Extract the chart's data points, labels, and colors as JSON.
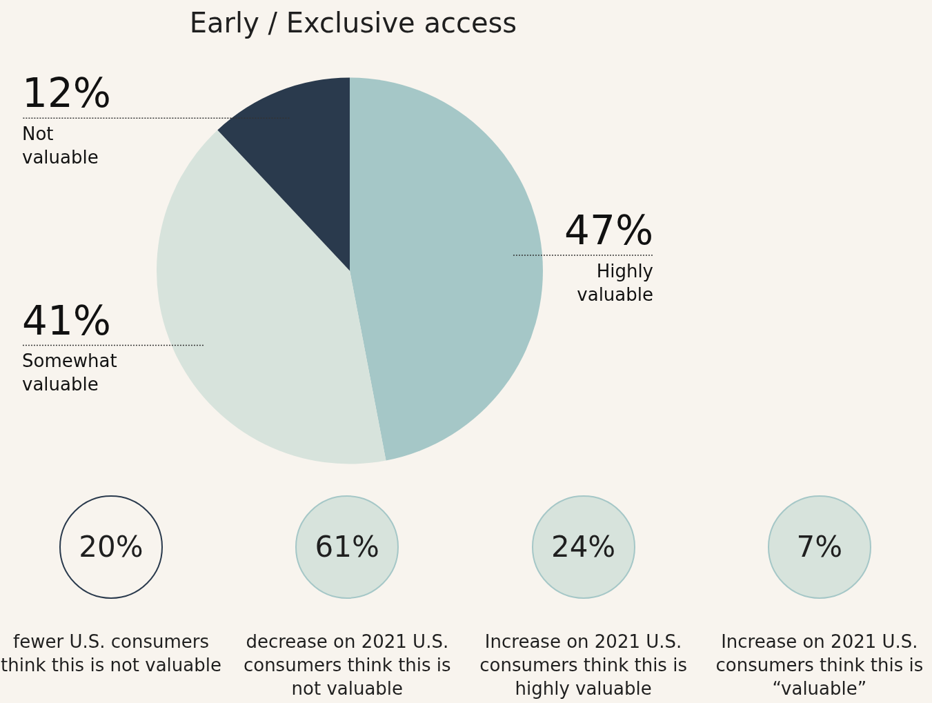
{
  "chart_data": {
    "type": "pie",
    "title": "Early / Exclusive access",
    "categories": [
      "Highly valuable",
      "Somewhat valuable",
      "Not valuable"
    ],
    "values": [
      47,
      41,
      12
    ],
    "colors": [
      "#a5c7c7",
      "#d7e3dc",
      "#2a3a4d"
    ],
    "value_labels": [
      "47%",
      "41%",
      "12%"
    ],
    "legend": false,
    "annotations": [
      "20%",
      "fewer U.S. consumers think this is not valuable",
      "61%",
      "decrease on 2021 U.S. consumers think this is not valuable",
      "24%",
      "Increase on 2021 U.S. consumers think this is highly valuable",
      "7%",
      "Increase on 2021 U.S. consumers think this is “valuable”"
    ]
  }
}
